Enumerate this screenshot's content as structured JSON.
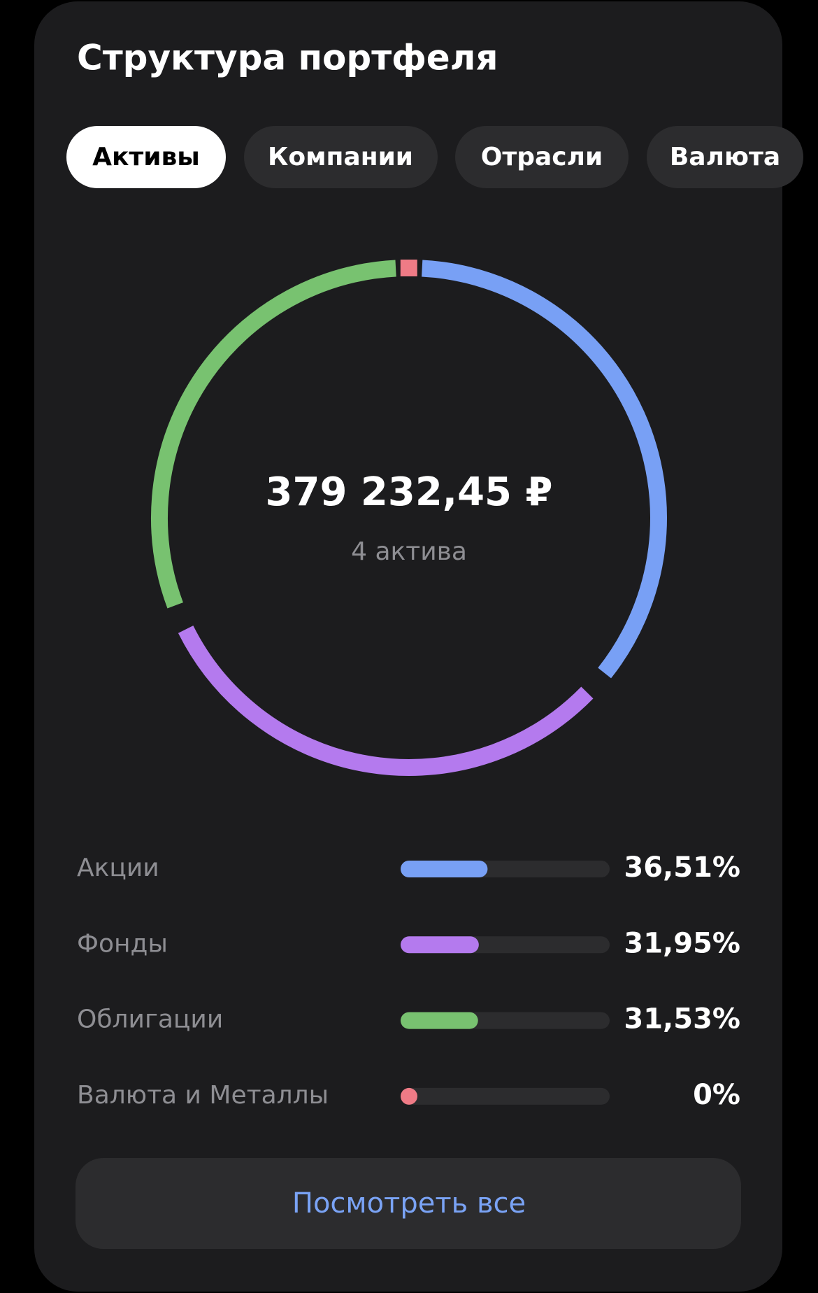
{
  "title": "Структура портфеля",
  "tabs": [
    "Активы",
    "Компании",
    "Отрасли",
    "Валюта"
  ],
  "chart_data": {
    "type": "donut",
    "total": "379 232,45 ₽",
    "subtitle": "4 актива",
    "categories": [
      "Акции",
      "Фонды",
      "Облигации",
      "Валюта и Металлы"
    ],
    "values": [
      36.51,
      31.95,
      31.53,
      0
    ],
    "value_labels": [
      "36,51%",
      "31,95%",
      "31,53%",
      "0%"
    ],
    "colors": [
      "#78a0f5",
      "#b47aee",
      "#78c270",
      "#ef7b86"
    ]
  },
  "button": "Посмотреть все"
}
